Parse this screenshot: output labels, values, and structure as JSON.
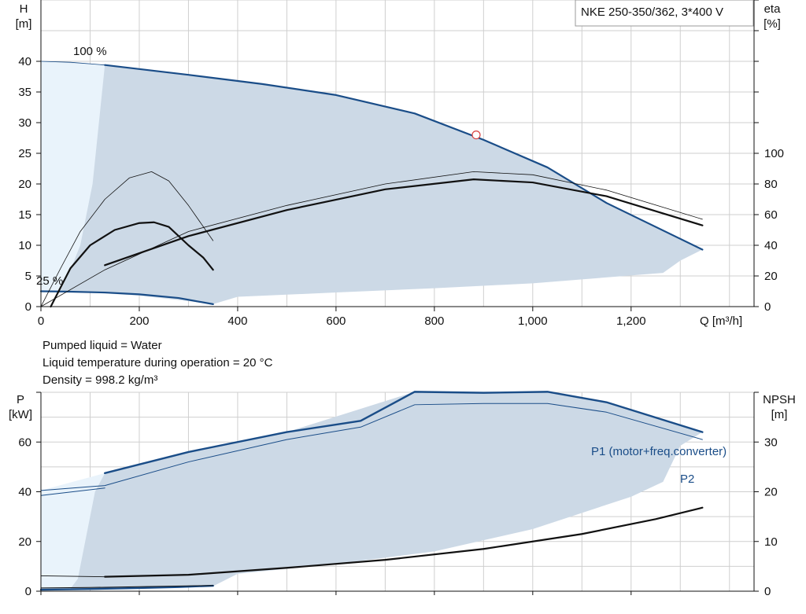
{
  "pump_title": "NKE 250-350/362, 3*400 V",
  "colors": {
    "curve_blue": "#1a4d88",
    "region_fill": "#ccd9e6",
    "region_light": "#e9f3fb",
    "grid": "#cfcfcf",
    "dp_marker": "#d84040"
  },
  "info": {
    "liquid": "Pumped liquid = Water",
    "temperature": "Liquid temperature during operation = 20 °C",
    "density": "Density = 998.2 kg/m³"
  },
  "chart_data": [
    {
      "type": "line",
      "name": "QH and efficiency",
      "x_label": "Q [m³/h]",
      "x_ticks": [
        "0",
        "200",
        "400",
        "600",
        "800",
        "1,000",
        "1,200"
      ],
      "xlim": [
        0,
        1450
      ],
      "y_left_label": [
        "H",
        "[m]"
      ],
      "y_left_ticks": [
        "0",
        "5",
        "10",
        "15",
        "20",
        "25",
        "30",
        "35",
        "40"
      ],
      "y_left_lim": [
        0,
        50
      ],
      "y_right_label": [
        "eta",
        "[%]"
      ],
      "y_right_ticks": [
        "0",
        "20",
        "40",
        "60",
        "80",
        "100"
      ],
      "y_right_lim": [
        0,
        200
      ],
      "annotations": [
        "100 %",
        "25 %"
      ],
      "grid": true,
      "operating_region": {
        "upper": [
          [
            0,
            40
          ],
          [
            60,
            39.85
          ],
          [
            130,
            39.4
          ],
          [
            300,
            37.8
          ],
          [
            450,
            36.3
          ],
          [
            600,
            34.5
          ],
          [
            760,
            31.5
          ],
          [
            900,
            27.2
          ],
          [
            1030,
            22.7
          ],
          [
            1150,
            16.9
          ],
          [
            1345,
            9.3
          ]
        ],
        "lower": [
          [
            1345,
            9.3
          ],
          [
            1300,
            7.5
          ],
          [
            1265,
            5.5
          ],
          [
            1000,
            3.8
          ],
          [
            800,
            3.0
          ],
          [
            600,
            2.3
          ],
          [
            400,
            1.6
          ],
          [
            350,
            0.4
          ],
          [
            300,
            0.9
          ],
          [
            200,
            1.8
          ],
          [
            100,
            2.3
          ],
          [
            50,
            2.45
          ],
          [
            0,
            2.5
          ]
        ],
        "light_boundary": [
          [
            130,
            39.4
          ],
          [
            105,
            20
          ],
          [
            80,
            10
          ],
          [
            60,
            6
          ],
          [
            40,
            2.6
          ]
        ]
      },
      "series": [
        {
          "name": "100 %",
          "axis": "H",
          "color": "#1a4d88",
          "width": 2.2,
          "points": [
            [
              130,
              39.4
            ],
            [
              300,
              37.8
            ],
            [
              450,
              36.3
            ],
            [
              600,
              34.5
            ],
            [
              760,
              31.5
            ],
            [
              900,
              27.2
            ],
            [
              1030,
              22.7
            ],
            [
              1150,
              16.9
            ],
            [
              1345,
              9.3
            ]
          ]
        },
        {
          "name": "25 %",
          "axis": "H",
          "color": "#1a4d88",
          "width": 2.2,
          "points": [
            [
              0,
              2.5
            ],
            [
              50,
              2.45
            ],
            [
              130,
              2.3
            ],
            [
              200,
              2.0
            ],
            [
              280,
              1.4
            ],
            [
              350,
              0.4
            ]
          ]
        },
        {
          "axis": "eta",
          "color": "#111111",
          "width": 0.8,
          "points": [
            [
              0,
              0
            ],
            [
              40,
              25
            ],
            [
              80,
              49
            ],
            [
              130,
              70
            ],
            [
              180,
              84
            ],
            [
              225,
              88
            ],
            [
              260,
              82
            ],
            [
              300,
              66
            ],
            [
              350,
              43
            ]
          ]
        },
        {
          "axis": "eta",
          "color": "#111111",
          "width": 2.2,
          "points": [
            [
              20,
              0
            ],
            [
              60,
              25
            ],
            [
              100,
              40
            ],
            [
              150,
              50
            ],
            [
              200,
              54.5
            ],
            [
              230,
              55
            ],
            [
              260,
              52
            ],
            [
              300,
              40
            ],
            [
              330,
              32
            ],
            [
              350,
              24
            ]
          ]
        },
        {
          "axis": "eta",
          "color": "#111111",
          "width": 0.8,
          "points": [
            [
              0,
              0
            ],
            [
              130,
              24
            ],
            [
              300,
              49
            ],
            [
              500,
              66
            ],
            [
              700,
              80
            ],
            [
              880,
              88
            ],
            [
              1000,
              86
            ],
            [
              1150,
              76
            ],
            [
              1345,
              57
            ]
          ]
        },
        {
          "axis": "eta",
          "color": "#111111",
          "width": 2.2,
          "points": [
            [
              130,
              27
            ],
            [
              300,
              46
            ],
            [
              500,
              63
            ],
            [
              700,
              76.5
            ],
            [
              880,
              83
            ],
            [
              1000,
              81
            ],
            [
              1150,
              72
            ],
            [
              1345,
              53
            ]
          ]
        }
      ],
      "duty_point": {
        "q": 885,
        "h": 28
      }
    },
    {
      "type": "line",
      "name": "Power and NPSH",
      "y_left_label": [
        "P",
        "[kW]"
      ],
      "y_left_ticks": [
        "0",
        "20",
        "40",
        "60"
      ],
      "y_left_lim": [
        0,
        80
      ],
      "y_right_label": [
        "NPSH",
        "[m]"
      ],
      "y_right_ticks": [
        "0",
        "10",
        "20",
        "30"
      ],
      "y_right_lim": [
        0,
        40
      ],
      "xlim": [
        0,
        1450
      ],
      "grid": true,
      "operating_region": {
        "upper": [
          [
            130,
            47.5
          ],
          [
            300,
            56
          ],
          [
            500,
            64
          ],
          [
            760,
            80.2
          ],
          [
            1000,
            80
          ],
          [
            1030,
            80.2
          ],
          [
            1150,
            76
          ],
          [
            1345,
            64
          ]
        ],
        "lower": [
          [
            1345,
            64
          ],
          [
            1300,
            58.5
          ],
          [
            1265,
            44
          ],
          [
            1200,
            38
          ],
          [
            1000,
            25
          ],
          [
            800,
            16
          ],
          [
            600,
            11
          ],
          [
            400,
            7
          ],
          [
            350,
            2
          ],
          [
            300,
            1.5
          ],
          [
            200,
            1.2
          ],
          [
            100,
            1
          ],
          [
            50,
            0.7
          ],
          [
            0,
            0.5
          ]
        ],
        "light_boundary": [
          [
            130,
            47.5
          ],
          [
            110,
            40
          ],
          [
            90,
            20
          ],
          [
            75,
            5
          ],
          [
            60,
            1
          ]
        ]
      },
      "series": [
        {
          "name": "P1 (motor+freq.converter)",
          "axis": "P",
          "color": "#1a4d88",
          "width": 2.4,
          "points": [
            [
              130,
              47.5
            ],
            [
              300,
              56
            ],
            [
              500,
              64
            ],
            [
              650,
              68.5
            ],
            [
              760,
              80.2
            ],
            [
              900,
              79.8
            ],
            [
              1030,
              80.2
            ],
            [
              1150,
              76
            ],
            [
              1345,
              64
            ]
          ]
        },
        {
          "name": "P2",
          "axis": "P",
          "color": "#1a4d88",
          "width": 1.0,
          "points": [
            [
              0,
              40.5
            ],
            [
              130,
              42.5
            ],
            [
              300,
              52
            ],
            [
              500,
              61
            ],
            [
              650,
              66
            ],
            [
              760,
              75
            ],
            [
              900,
              75.5
            ],
            [
              1030,
              75.5
            ],
            [
              1150,
              72
            ],
            [
              1345,
              61
            ]
          ]
        },
        {
          "axis": "P",
          "color": "#1a4d88",
          "width": 1.0,
          "points": [
            [
              0,
              38.5
            ],
            [
              130,
              41.5
            ]
          ]
        },
        {
          "axis": "P",
          "color": "#1a4d88",
          "width": 2.4,
          "points": [
            [
              0,
              0.6
            ],
            [
              100,
              0.9
            ],
            [
              200,
              1.3
            ],
            [
              280,
              1.7
            ],
            [
              350,
              2.2
            ]
          ]
        },
        {
          "axis": "P",
          "color": "#111111",
          "width": 1.0,
          "points": [
            [
              0,
              1.3
            ],
            [
              100,
              1.5
            ],
            [
              200,
              1.8
            ],
            [
              350,
              2.3
            ]
          ]
        },
        {
          "axis": "NPSH",
          "color": "#111111",
          "width": 2.2,
          "points": [
            [
              130,
              2.9
            ],
            [
              300,
              3.3
            ],
            [
              500,
              4.7
            ],
            [
              700,
              6.3
            ],
            [
              900,
              8.5
            ],
            [
              1100,
              11.5
            ],
            [
              1250,
              14.5
            ],
            [
              1345,
              16.8
            ]
          ]
        },
        {
          "axis": "NPSH",
          "color": "#111111",
          "width": 0.9,
          "points": [
            [
              0,
              3.1
            ],
            [
              130,
              2.9
            ]
          ]
        }
      ]
    }
  ]
}
